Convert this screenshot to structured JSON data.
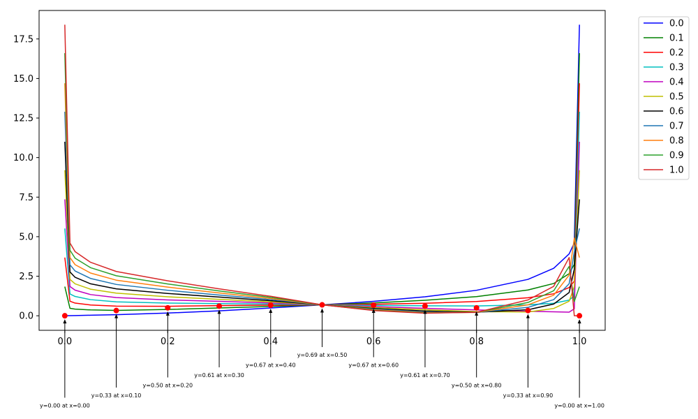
{
  "chart_data": {
    "type": "line",
    "title": "",
    "xlabel": "",
    "ylabel": "",
    "xlim": [
      -0.05,
      1.05
    ],
    "ylim": [
      -0.92,
      19.3
    ],
    "x_ticks": [
      0.0,
      0.2,
      0.4,
      0.6,
      0.8,
      1.0
    ],
    "x_tick_labels": [
      "0.0",
      "0.2",
      "0.4",
      "0.6",
      "0.8",
      "1.0"
    ],
    "y_ticks": [
      0.0,
      2.5,
      5.0,
      7.5,
      10.0,
      12.5,
      15.0,
      17.5
    ],
    "y_tick_labels": [
      "0.0",
      "2.5",
      "5.0",
      "7.5",
      "10.0",
      "12.5",
      "15.0",
      "17.5"
    ],
    "grid": false,
    "legend_position": "outside-top-right",
    "x": [
      0.0,
      0.01,
      0.02,
      0.05,
      0.1,
      0.2,
      0.3,
      0.4,
      0.5,
      0.6,
      0.7,
      0.8,
      0.9,
      0.95,
      0.98,
      0.99,
      1.0
    ],
    "series": [
      {
        "name": "0.0",
        "color": "#0000ff",
        "values": [
          0.0,
          0.007,
          0.013,
          0.034,
          0.07,
          0.17,
          0.31,
          0.49,
          0.69,
          0.91,
          1.2,
          1.61,
          2.3,
          3.0,
          3.91,
          4.6,
          18.4
        ]
      },
      {
        "name": "0.1",
        "color": "#008000",
        "values": [
          1.84,
          0.47,
          0.42,
          0.37,
          0.34,
          0.4,
          0.49,
          0.59,
          0.69,
          0.81,
          0.98,
          1.21,
          1.63,
          2.04,
          2.66,
          3.25,
          16.6
        ]
      },
      {
        "name": "0.2",
        "color": "#ff0000",
        "values": [
          3.68,
          0.92,
          0.8,
          0.68,
          0.61,
          0.6,
          0.64,
          0.67,
          0.69,
          0.73,
          0.79,
          0.9,
          1.14,
          1.39,
          1.78,
          2.19,
          14.7
        ]
      },
      {
        "name": "0.3",
        "color": "#00bfbf",
        "values": [
          5.52,
          1.38,
          1.22,
          1.02,
          0.88,
          0.8,
          0.77,
          0.74,
          0.69,
          0.66,
          0.63,
          0.62,
          0.69,
          0.79,
          0.99,
          1.26,
          12.9
        ]
      },
      {
        "name": "0.4",
        "color": "#bf00bf",
        "values": [
          7.36,
          1.85,
          1.62,
          1.34,
          1.15,
          1.0,
          0.91,
          0.81,
          0.69,
          0.58,
          0.47,
          0.37,
          0.28,
          0.25,
          0.23,
          0.44,
          11.0
        ]
      },
      {
        "name": "0.5",
        "color": "#bfbf00",
        "values": [
          9.2,
          2.3,
          2.02,
          1.68,
          1.43,
          1.2,
          1.04,
          0.88,
          0.69,
          0.52,
          0.38,
          0.26,
          0.24,
          0.46,
          0.92,
          1.84,
          9.2
        ]
      },
      {
        "name": "0.6",
        "color": "#000000",
        "values": [
          11.0,
          2.77,
          2.43,
          2.02,
          1.7,
          1.41,
          1.18,
          0.95,
          0.69,
          0.46,
          0.3,
          0.22,
          0.38,
          0.74,
          1.47,
          2.94,
          7.36
        ]
      },
      {
        "name": "0.7",
        "color": "#1f77b4",
        "values": [
          12.9,
          3.22,
          2.83,
          2.36,
          1.98,
          1.61,
          1.31,
          1.02,
          0.69,
          0.42,
          0.24,
          0.21,
          0.53,
          1.02,
          2.02,
          4.05,
          5.52
        ]
      },
      {
        "name": "0.8",
        "color": "#ff7f0e",
        "values": [
          14.7,
          3.68,
          3.23,
          2.7,
          2.25,
          1.81,
          1.44,
          1.09,
          0.69,
          0.38,
          0.2,
          0.21,
          0.69,
          1.3,
          2.57,
          4.9,
          3.68
        ]
      },
      {
        "name": "0.9",
        "color": "#2ca02c",
        "values": [
          16.6,
          4.14,
          3.64,
          3.04,
          2.53,
          2.01,
          1.57,
          1.16,
          0.69,
          0.35,
          0.18,
          0.22,
          0.84,
          1.58,
          3.12,
          0.9,
          1.84
        ]
      },
      {
        "name": "1.0",
        "color": "#d62728",
        "values": [
          18.4,
          4.6,
          4.05,
          3.38,
          2.8,
          2.21,
          1.7,
          1.23,
          0.69,
          0.33,
          0.16,
          0.22,
          1.0,
          1.86,
          3.68,
          0.0,
          0.0
        ]
      }
    ],
    "markers": {
      "color": "#ff0000",
      "points": [
        {
          "x": 0.0,
          "y": 0.0,
          "label": "y=0.00 at x=0.00"
        },
        {
          "x": 0.1,
          "y": 0.33,
          "label": "y=0.33 at x=0.10"
        },
        {
          "x": 0.2,
          "y": 0.5,
          "label": "y=0.50 at x=0.20"
        },
        {
          "x": 0.3,
          "y": 0.61,
          "label": "y=0.61 at x=0.30"
        },
        {
          "x": 0.4,
          "y": 0.67,
          "label": "y=0.67 at x=0.40"
        },
        {
          "x": 0.5,
          "y": 0.69,
          "label": "y=0.69 at x=0.50"
        },
        {
          "x": 0.6,
          "y": 0.67,
          "label": "y=0.67 at x=0.60"
        },
        {
          "x": 0.7,
          "y": 0.61,
          "label": "y=0.61 at x=0.70"
        },
        {
          "x": 0.8,
          "y": 0.5,
          "label": "y=0.50 at x=0.80"
        },
        {
          "x": 0.9,
          "y": 0.33,
          "label": "y=0.33 at x=0.90"
        },
        {
          "x": 1.0,
          "y": 0.0,
          "label": "y=0.00 at x=1.00"
        }
      ]
    }
  }
}
